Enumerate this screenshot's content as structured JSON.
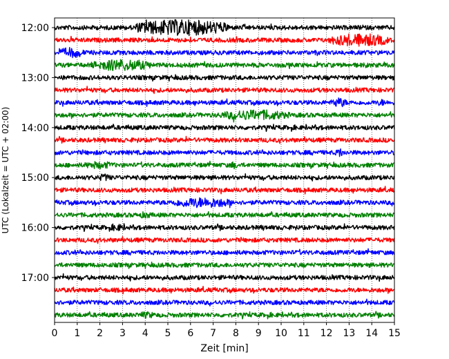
{
  "chart_data": {
    "type": "line",
    "title": "",
    "xlabel": "Zeit  [min]",
    "ylabel": "UTC (Lokalzeit = UTC + 02:00)",
    "xlim": [
      0,
      15
    ],
    "x_ticks": [
      "0",
      "1",
      "2",
      "3",
      "4",
      "5",
      "6",
      "7",
      "8",
      "9",
      "10",
      "11",
      "12",
      "13",
      "14",
      "15"
    ],
    "y_ticks": [
      "12:00",
      "13:00",
      "14:00",
      "15:00",
      "16:00",
      "17:00"
    ],
    "grid": "vertical dotted",
    "trace_interval_min": 15,
    "color_cycle": [
      "#000000",
      "#ff0000",
      "#0000ff",
      "#008000"
    ],
    "series": [
      {
        "start": "12:00",
        "color": "#000000",
        "events": [
          {
            "from": 3.5,
            "to": 7.7,
            "amp": 2.3
          }
        ]
      },
      {
        "start": "12:15",
        "color": "#ff0000",
        "events": [
          {
            "from": 12.1,
            "to": 14.8,
            "amp": 1.9
          }
        ]
      },
      {
        "start": "12:30",
        "color": "#0000ff",
        "events": [
          {
            "from": 0.2,
            "to": 1.3,
            "amp": 1.5
          }
        ]
      },
      {
        "start": "12:45",
        "color": "#008000",
        "events": [
          {
            "from": 1.6,
            "to": 4.3,
            "amp": 1.7
          }
        ]
      },
      {
        "start": "13:00",
        "color": "#000000",
        "events": []
      },
      {
        "start": "13:15",
        "color": "#ff0000",
        "events": []
      },
      {
        "start": "13:30",
        "color": "#0000ff",
        "events": [
          {
            "from": 12.2,
            "to": 12.9,
            "amp": 1.4
          },
          {
            "from": 14.2,
            "to": 14.7,
            "amp": 1.0
          }
        ]
      },
      {
        "start": "13:45",
        "color": "#008000",
        "events": [
          {
            "from": 7.2,
            "to": 10.4,
            "amp": 1.5
          }
        ]
      },
      {
        "start": "14:00",
        "color": "#000000",
        "events": []
      },
      {
        "start": "14:15",
        "color": "#ff0000",
        "events": []
      },
      {
        "start": "14:30",
        "color": "#0000ff",
        "events": [
          {
            "from": 12.4,
            "to": 12.8,
            "amp": 1.3
          }
        ]
      },
      {
        "start": "14:45",
        "color": "#008000",
        "events": [
          {
            "from": 1.2,
            "to": 2.7,
            "amp": 1.1
          },
          {
            "from": 7.7,
            "to": 8.1,
            "amp": 1.1
          }
        ]
      },
      {
        "start": "15:00",
        "color": "#000000",
        "events": [
          {
            "from": 1.9,
            "to": 2.5,
            "amp": 1.1
          }
        ]
      },
      {
        "start": "15:15",
        "color": "#ff0000",
        "events": []
      },
      {
        "start": "15:30",
        "color": "#0000ff",
        "events": [
          {
            "from": 5.1,
            "to": 7.9,
            "amp": 1.5
          }
        ]
      },
      {
        "start": "15:45",
        "color": "#008000",
        "events": [
          {
            "from": 3.7,
            "to": 4.3,
            "amp": 1.0
          }
        ]
      },
      {
        "start": "16:00",
        "color": "#000000",
        "events": [
          {
            "from": 2.4,
            "to": 3.2,
            "amp": 1.0
          }
        ]
      },
      {
        "start": "16:15",
        "color": "#ff0000",
        "events": []
      },
      {
        "start": "16:30",
        "color": "#0000ff",
        "events": []
      },
      {
        "start": "16:45",
        "color": "#008000",
        "events": []
      },
      {
        "start": "17:00",
        "color": "#000000",
        "events": []
      },
      {
        "start": "17:15",
        "color": "#ff0000",
        "events": []
      },
      {
        "start": "17:30",
        "color": "#0000ff",
        "events": []
      },
      {
        "start": "17:45",
        "color": "#008000",
        "events": [
          {
            "from": 3.6,
            "to": 4.5,
            "amp": 1.0
          }
        ]
      }
    ]
  }
}
